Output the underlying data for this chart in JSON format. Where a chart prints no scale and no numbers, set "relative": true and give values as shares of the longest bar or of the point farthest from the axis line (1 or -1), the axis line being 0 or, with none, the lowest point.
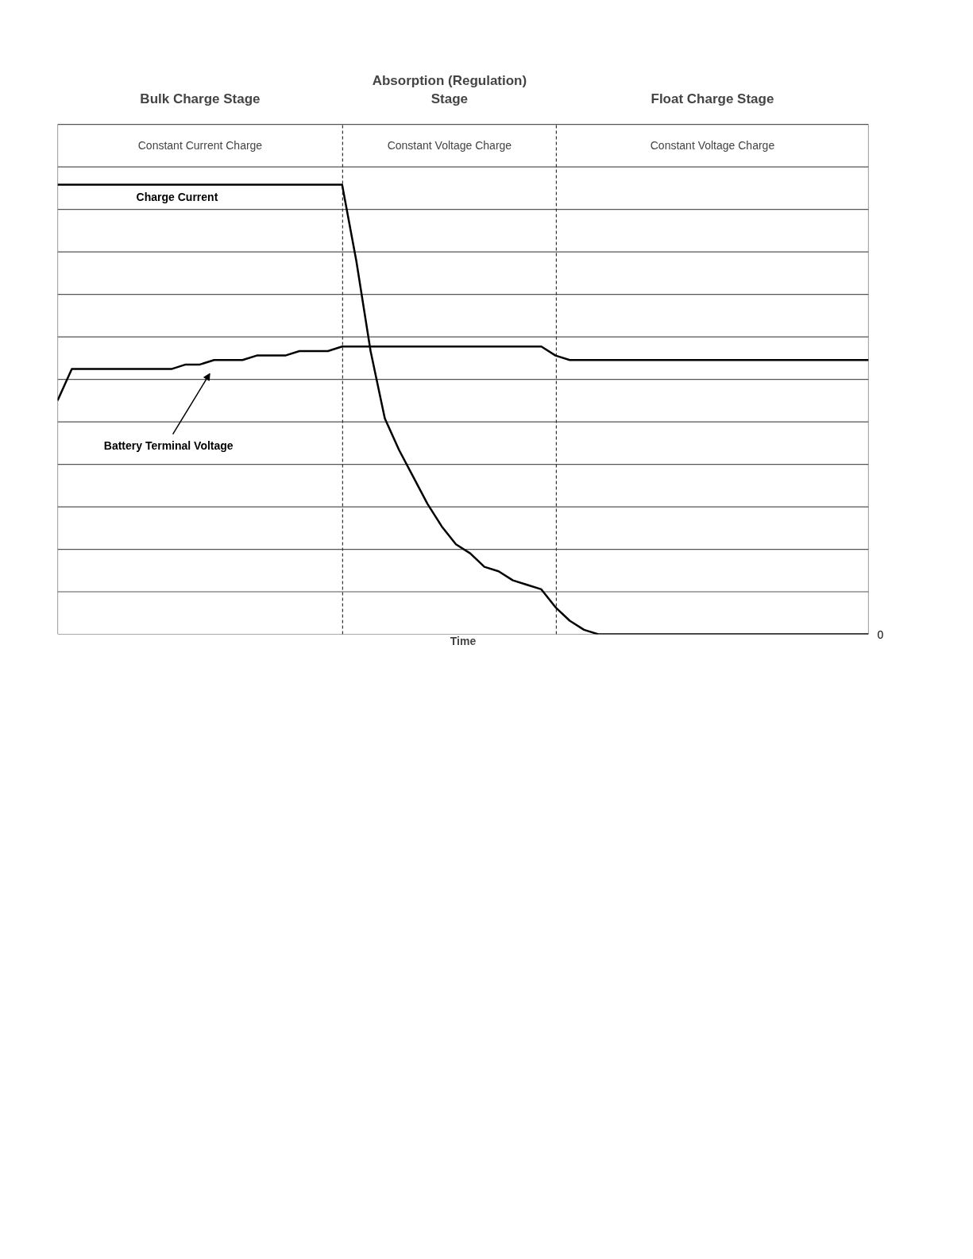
{
  "chart_data": {
    "type": "line",
    "relative": true,
    "xlabel": "Time",
    "categories": [
      null,
      null,
      null,
      null,
      null,
      null,
      null,
      null,
      null,
      null,
      null,
      null,
      null,
      null,
      null,
      null,
      null,
      null,
      null,
      null,
      null,
      null,
      null,
      null,
      null,
      null,
      null,
      null,
      null,
      null,
      null,
      null,
      null,
      null,
      null,
      null,
      null,
      null,
      null,
      null,
      null,
      null,
      null,
      null,
      null,
      null,
      null,
      null,
      null,
      null,
      null,
      null,
      null,
      null,
      null,
      null,
      null,
      null
    ],
    "series": [
      {
        "name": "Charge Current",
        "color": "#000000",
        "values": [
          1.0,
          1.0,
          1.0,
          1.0,
          1.0,
          1.0,
          1.0,
          1.0,
          1.0,
          1.0,
          1.0,
          1.0,
          1.0,
          1.0,
          1.0,
          1.0,
          1.0,
          1.0,
          1.0,
          1.0,
          1.0,
          0.83,
          0.63,
          0.48,
          0.41,
          0.35,
          0.29,
          0.24,
          0.2,
          0.18,
          0.15,
          0.14,
          0.12,
          0.11,
          0.1,
          0.06,
          0.03,
          0.01,
          0.0,
          0.0,
          0.0,
          0.0,
          0.0,
          0.0,
          0.0,
          0.0,
          0.0,
          0.0,
          0.0,
          0.0,
          0.0,
          0.0,
          0.0,
          0.0,
          0.0,
          0.0,
          0.0,
          0.0
        ]
      },
      {
        "name": "Battery Terminal Voltage",
        "color": "#000000",
        "values": [
          0.52,
          0.59,
          0.59,
          0.59,
          0.59,
          0.59,
          0.59,
          0.59,
          0.59,
          0.6,
          0.6,
          0.61,
          0.61,
          0.61,
          0.62,
          0.62,
          0.62,
          0.63,
          0.63,
          0.63,
          0.64,
          0.64,
          0.64,
          0.64,
          0.64,
          0.64,
          0.64,
          0.64,
          0.64,
          0.64,
          0.64,
          0.64,
          0.64,
          0.64,
          0.64,
          0.62,
          0.61,
          0.61,
          0.61,
          0.61,
          0.61,
          0.61,
          0.61,
          0.61,
          0.61,
          0.61,
          0.61,
          0.61,
          0.61,
          0.61,
          0.61,
          0.61,
          0.61,
          0.61,
          0.61,
          0.61,
          0.61,
          0.61
        ]
      }
    ],
    "annotations": [
      "Bulk Charge Stage",
      "Absorption (Regulation)\nStage",
      "Float Charge Stage",
      "Constant Current Charge",
      "Constant Voltage Charge",
      "Constant Voltage Charge",
      "0"
    ],
    "grid": "y",
    "line_style": "solid",
    "marker": "none"
  }
}
